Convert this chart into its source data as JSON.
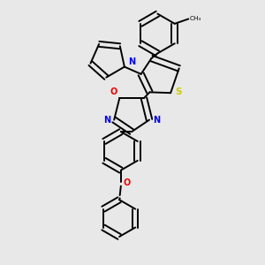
{
  "bg_color": "#e8e8e8",
  "bond_color": "#000000",
  "bond_width": 1.4,
  "S_color": "#cccc00",
  "N_color": "#0000ee",
  "O_color": "#ee0000",
  "C_color": "#000000",
  "figsize": [
    3.0,
    3.0
  ],
  "dpi": 100,
  "xlim": [
    0.0,
    1.0
  ],
  "ylim": [
    0.0,
    1.0
  ]
}
